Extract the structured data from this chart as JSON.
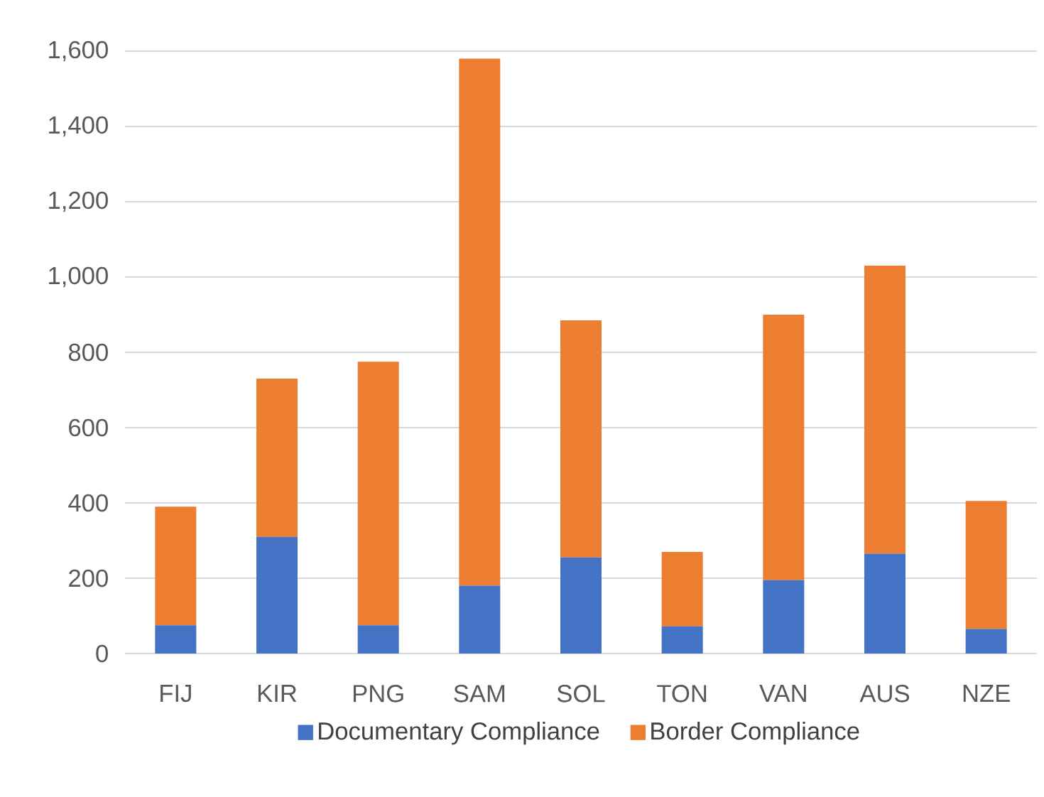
{
  "chart_data": {
    "type": "bar",
    "stacked": true,
    "categories": [
      "FIJ",
      "KIR",
      "PNG",
      "SAM",
      "SOL",
      "TON",
      "VAN",
      "AUS",
      "NZE"
    ],
    "series": [
      {
        "name": "Documentary Compliance",
        "color": "#4472c4",
        "values": [
          75,
          310,
          75,
          180,
          255,
          72,
          195,
          265,
          65
        ]
      },
      {
        "name": "Border Compliance",
        "color": "#ed7d31",
        "values": [
          315,
          420,
          700,
          1400,
          630,
          198,
          705,
          765,
          340
        ]
      }
    ],
    "ylim": [
      0,
      1600
    ],
    "yticks": [
      0,
      200,
      400,
      600,
      800,
      {
        "value": 1000,
        "label": "1,000"
      },
      {
        "value": 1200,
        "label": "1,200"
      },
      {
        "value": 1400,
        "label": "1,400"
      },
      {
        "value": 1600,
        "label": "1,600"
      }
    ],
    "grid": "y",
    "legend": "bottom"
  }
}
